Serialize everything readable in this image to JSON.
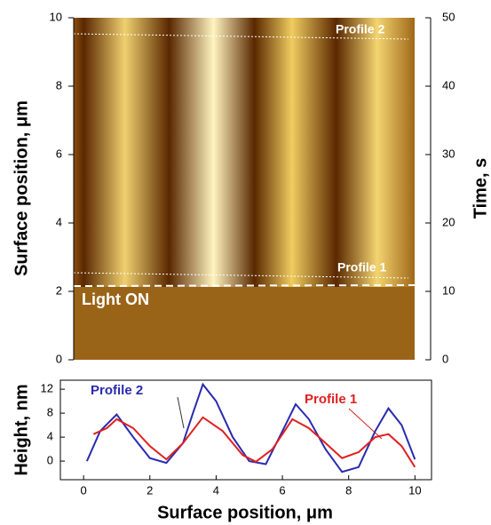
{
  "chart_data": [
    {
      "type": "image",
      "ylabel": "Surface position, μm",
      "y2label": "Time, s",
      "ylim": [
        0,
        10
      ],
      "yticks": [
        0,
        2,
        4,
        6,
        8,
        10
      ],
      "y2lim": [
        0,
        50
      ],
      "y2ticks": [
        0,
        10,
        20,
        30,
        40,
        50
      ],
      "annotations": [
        "Profile 2",
        "Profile 1",
        "Light ON"
      ]
    },
    {
      "type": "line",
      "xlabel": "Surface position, μm",
      "ylabel": "Height, nm",
      "xlim": [
        -0.7,
        10.5
      ],
      "xticks": [
        0,
        2,
        4,
        6,
        8,
        10
      ],
      "ylim": [
        -3.1,
        13.5
      ],
      "yticks": [
        0,
        4,
        8,
        12
      ],
      "series": [
        {
          "name": "Profile 2",
          "color": "#2a2ab0",
          "x": [
            0.1,
            0.5,
            1.0,
            1.5,
            2.0,
            2.5,
            3.0,
            3.3,
            3.6,
            4.0,
            4.5,
            5.0,
            5.5,
            6.0,
            6.4,
            6.8,
            7.3,
            7.8,
            8.3,
            8.8,
            9.2,
            9.6,
            10.0
          ],
          "values": [
            0,
            5,
            7.8,
            4,
            0.5,
            -0.3,
            3,
            8,
            12.8,
            10,
            4,
            0,
            -0.5,
            5,
            9.5,
            7,
            2,
            -1.8,
            -1,
            5,
            8.8,
            6,
            0.3
          ]
        },
        {
          "name": "Profile 1",
          "color": "#e02020",
          "x": [
            0.3,
            0.7,
            1.0,
            1.5,
            2.0,
            2.5,
            3.0,
            3.6,
            4.2,
            4.8,
            5.2,
            5.7,
            6.3,
            6.8,
            7.3,
            7.8,
            8.3,
            8.8,
            9.2,
            9.6,
            10.0
          ],
          "values": [
            4.5,
            5.5,
            7.0,
            5.5,
            2.5,
            0.3,
            3,
            7.3,
            5,
            1,
            -0.1,
            2,
            7,
            5.5,
            3,
            0.5,
            1.5,
            4,
            4.5,
            2.5,
            -1
          ]
        }
      ]
    }
  ]
}
